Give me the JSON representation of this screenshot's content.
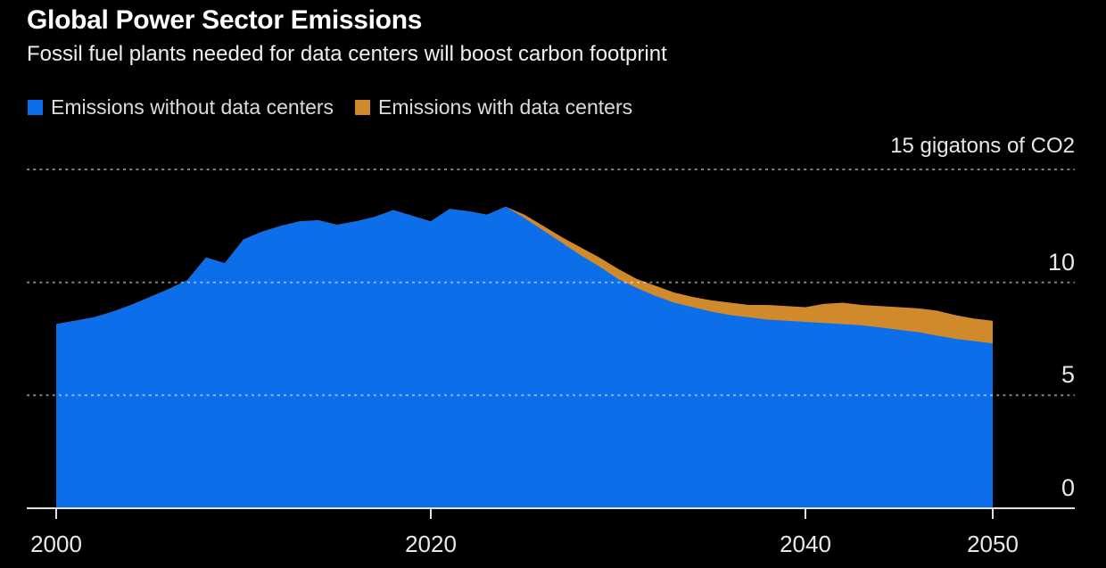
{
  "header": {
    "title": "Global Power Sector Emissions",
    "subtitle": "Fossil fuel plants needed for data centers will boost carbon footprint"
  },
  "legend": {
    "items": [
      {
        "label": "Emissions without data centers",
        "color": "#0d6eea"
      },
      {
        "label": "Emissions with data centers",
        "color": "#d18a2b"
      }
    ]
  },
  "colors": {
    "background": "#000000",
    "gridline": "rgba(255,255,255,0.5)",
    "axis_line": "#e2e2e2",
    "text": "#e8e8e8"
  },
  "chart_data": {
    "type": "area",
    "title": "Global Power Sector Emissions",
    "subtitle": "Fossil fuel plants needed for data centers will boost carbon footprint",
    "unit_label": "15 gigatons of CO2",
    "ylabel": "gigatons of CO2",
    "xlabel": "",
    "ylim": [
      0,
      15
    ],
    "xlim": [
      2000,
      2050
    ],
    "grid": "horizontal-dotted",
    "legend_position": "top-left",
    "x": [
      2000,
      2001,
      2002,
      2003,
      2004,
      2005,
      2006,
      2007,
      2008,
      2009,
      2010,
      2011,
      2012,
      2013,
      2014,
      2015,
      2016,
      2017,
      2018,
      2019,
      2020,
      2021,
      2022,
      2023,
      2024,
      2025,
      2026,
      2027,
      2028,
      2029,
      2030,
      2031,
      2032,
      2033,
      2034,
      2035,
      2036,
      2037,
      2038,
      2039,
      2040,
      2041,
      2042,
      2043,
      2044,
      2045,
      2046,
      2047,
      2048,
      2049,
      2050
    ],
    "series": [
      {
        "name": "Emissions with data centers",
        "color": "#d18a2b",
        "values": [
          8.15,
          8.3,
          8.45,
          8.7,
          9.0,
          9.35,
          9.7,
          10.1,
          11.1,
          10.85,
          11.9,
          12.25,
          12.5,
          12.7,
          12.75,
          12.55,
          12.7,
          12.9,
          13.2,
          12.95,
          12.7,
          13.25,
          13.15,
          13.0,
          13.35,
          13.0,
          12.5,
          12.0,
          11.55,
          11.1,
          10.6,
          10.15,
          9.85,
          9.55,
          9.35,
          9.2,
          9.1,
          9.0,
          9.0,
          8.95,
          8.9,
          9.05,
          9.1,
          9.0,
          8.95,
          8.9,
          8.85,
          8.75,
          8.55,
          8.4,
          8.3
        ]
      },
      {
        "name": "Emissions without data centers",
        "color": "#0d6eea",
        "values": [
          8.15,
          8.3,
          8.45,
          8.7,
          9.0,
          9.35,
          9.7,
          10.1,
          11.1,
          10.85,
          11.9,
          12.25,
          12.5,
          12.7,
          12.75,
          12.55,
          12.7,
          12.9,
          13.2,
          12.95,
          12.7,
          13.25,
          13.15,
          13.0,
          13.35,
          12.85,
          12.3,
          11.75,
          11.2,
          10.7,
          10.15,
          9.75,
          9.4,
          9.1,
          8.9,
          8.7,
          8.55,
          8.45,
          8.35,
          8.3,
          8.25,
          8.2,
          8.15,
          8.1,
          8.0,
          7.9,
          7.8,
          7.65,
          7.5,
          7.4,
          7.3
        ]
      }
    ],
    "yticks": [
      {
        "value": 15,
        "label": "15 gigatons of CO2"
      },
      {
        "value": 10,
        "label": "10"
      },
      {
        "value": 5,
        "label": "5"
      },
      {
        "value": 0,
        "label": "0"
      }
    ],
    "xticks": [
      {
        "value": 2000,
        "label": "2000"
      },
      {
        "value": 2020,
        "label": "2020"
      },
      {
        "value": 2040,
        "label": "2040"
      },
      {
        "value": 2050,
        "label": "2050"
      }
    ]
  }
}
